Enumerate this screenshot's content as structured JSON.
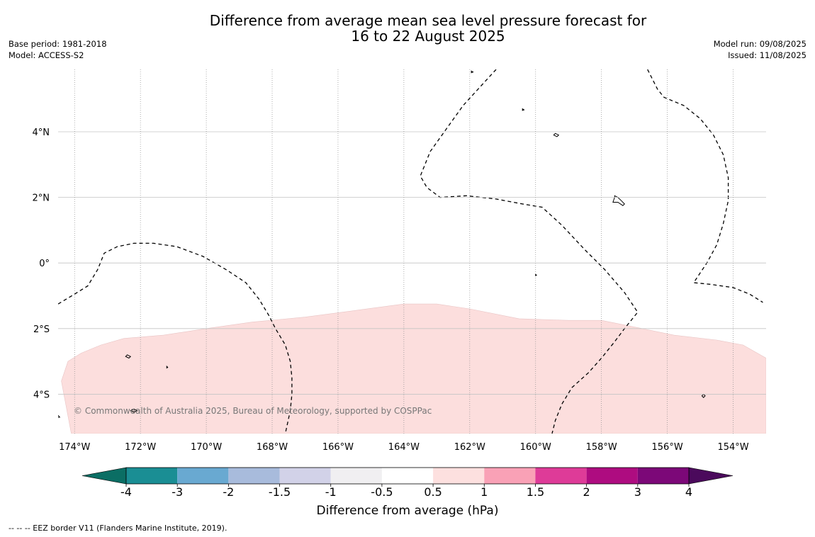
{
  "title_line1": "Difference from average mean sea level pressure forecast for",
  "title_line2": "16 to 22 August 2025",
  "base_period": "Base period: 1981-2018",
  "model": "Model: ACCESS-S2",
  "model_run": "Model run: 09/08/2025",
  "issued": "Issued: 11/08/2025",
  "copyright": "© Commonwealth of Australia 2025, Bureau of Meteorology, supported by COSPPac",
  "footer": "--  --  -- EEZ border V11 (Flanders Marine Institute, 2019).",
  "map": {
    "lon_range": [
      -174.5,
      -153
    ],
    "lat_range": [
      -5.2,
      5.9
    ],
    "lon_ticks": [
      {
        "value": -174,
        "label": "174°W"
      },
      {
        "value": -172,
        "label": "172°W"
      },
      {
        "value": -170,
        "label": "170°W"
      },
      {
        "value": -168,
        "label": "168°W"
      },
      {
        "value": -166,
        "label": "166°W"
      },
      {
        "value": -164,
        "label": "164°W"
      },
      {
        "value": -162,
        "label": "162°W"
      },
      {
        "value": -160,
        "label": "160°W"
      },
      {
        "value": -158,
        "label": "158°W"
      },
      {
        "value": -156,
        "label": "156°W"
      },
      {
        "value": -154,
        "label": "154°W"
      }
    ],
    "lat_ticks": [
      {
        "value": 4,
        "label": "4°N"
      },
      {
        "value": 2,
        "label": "2°N"
      },
      {
        "value": 0,
        "label": "0°"
      },
      {
        "value": -2,
        "label": "2°S"
      },
      {
        "value": -4,
        "label": "4°S"
      }
    ],
    "anomaly_fill_color": "#fcdedd",
    "anomaly_region": [
      [
        -174.1,
        -5.2
      ],
      [
        -174.4,
        -3.6
      ],
      [
        -174.2,
        -3.0
      ],
      [
        -173.8,
        -2.75
      ],
      [
        -173.2,
        -2.5
      ],
      [
        -172.5,
        -2.3
      ],
      [
        -171.3,
        -2.2
      ],
      [
        -170,
        -2.0
      ],
      [
        -168.6,
        -1.8
      ],
      [
        -167,
        -1.65
      ],
      [
        -165.5,
        -1.45
      ],
      [
        -164,
        -1.25
      ],
      [
        -163,
        -1.25
      ],
      [
        -162,
        -1.4
      ],
      [
        -160.5,
        -1.7
      ],
      [
        -159,
        -1.75
      ],
      [
        -158,
        -1.75
      ],
      [
        -157,
        -1.95
      ],
      [
        -155.8,
        -2.2
      ],
      [
        -154.5,
        -2.35
      ],
      [
        -153.7,
        -2.5
      ],
      [
        -153,
        -2.9
      ],
      [
        -153,
        -5.2
      ]
    ],
    "eez_lines": [
      [
        [
          -174.5,
          -1.25
        ],
        [
          -174,
          -0.95
        ],
        [
          -173.6,
          -0.7
        ],
        [
          -173.3,
          -0.2
        ],
        [
          -173.1,
          0.3
        ],
        [
          -172.7,
          0.5
        ],
        [
          -172.2,
          0.6
        ],
        [
          -171.6,
          0.6
        ],
        [
          -170.9,
          0.5
        ],
        [
          -170.1,
          0.2
        ],
        [
          -169.4,
          -0.2
        ],
        [
          -168.8,
          -0.6
        ],
        [
          -168.4,
          -1.1
        ],
        [
          -168.1,
          -1.6
        ],
        [
          -167.9,
          -2.0
        ],
        [
          -167.6,
          -2.5
        ],
        [
          -167.45,
          -3.0
        ],
        [
          -167.4,
          -3.5
        ],
        [
          -167.4,
          -4.0
        ],
        [
          -167.45,
          -4.5
        ],
        [
          -167.6,
          -5.2
        ]
      ],
      [
        [
          -161.2,
          5.9
        ],
        [
          -162.2,
          4.8
        ],
        [
          -163.2,
          3.4
        ],
        [
          -163.5,
          2.65
        ],
        [
          -163.3,
          2.3
        ],
        [
          -162.9,
          2.0
        ],
        [
          -162.1,
          2.05
        ],
        [
          -161.2,
          1.95
        ],
        [
          -160.4,
          1.8
        ],
        [
          -159.8,
          1.7
        ],
        [
          -159.2,
          1.15
        ],
        [
          -158.5,
          0.4
        ],
        [
          -157.9,
          -0.2
        ],
        [
          -157.3,
          -0.9
        ],
        [
          -156.9,
          -1.5
        ],
        [
          -157.3,
          -2.0
        ],
        [
          -157.6,
          -2.4
        ],
        [
          -158,
          -2.9
        ],
        [
          -158.4,
          -3.35
        ],
        [
          -158.9,
          -3.8
        ],
        [
          -159.2,
          -4.3
        ],
        [
          -159.4,
          -4.8
        ],
        [
          -159.5,
          -5.2
        ]
      ],
      [
        [
          -156.6,
          5.9
        ],
        [
          -156.3,
          5.3
        ],
        [
          -156.1,
          5.05
        ],
        [
          -155.5,
          4.8
        ],
        [
          -155,
          4.4
        ],
        [
          -154.6,
          3.9
        ],
        [
          -154.3,
          3.3
        ],
        [
          -154.15,
          2.6
        ],
        [
          -154.15,
          1.9
        ],
        [
          -154.3,
          1.2
        ],
        [
          -154.5,
          0.55
        ],
        [
          -154.8,
          0
        ],
        [
          -155.2,
          -0.6
        ],
        [
          -154.7,
          -0.65
        ],
        [
          -154.0,
          -0.75
        ],
        [
          -153.5,
          -0.95
        ],
        [
          -153.1,
          -1.2
        ]
      ]
    ],
    "islands": [
      [
        [
          -157.6,
          2.05
        ],
        [
          -157.5,
          2.0
        ],
        [
          -157.4,
          1.9
        ],
        [
          -157.3,
          1.8
        ],
        [
          -157.35,
          1.75
        ],
        [
          -157.5,
          1.85
        ],
        [
          -157.65,
          1.85
        ],
        [
          -157.6,
          2.0
        ]
      ],
      [
        [
          -159.4,
          3.95
        ],
        [
          -159.3,
          3.9
        ],
        [
          -159.35,
          3.85
        ],
        [
          -159.45,
          3.9
        ]
      ],
      [
        [
          -172.4,
          -2.8
        ],
        [
          -172.3,
          -2.85
        ],
        [
          -172.35,
          -2.9
        ],
        [
          -172.45,
          -2.85
        ]
      ],
      [
        [
          -172.2,
          -4.45
        ],
        [
          -172.1,
          -4.5
        ],
        [
          -172.2,
          -4.55
        ],
        [
          -172.3,
          -4.5
        ]
      ],
      [
        [
          -174.5,
          -4.65
        ],
        [
          -174.45,
          -4.7
        ],
        [
          -174.55,
          -4.72
        ]
      ],
      [
        [
          -154.9,
          -4.0
        ],
        [
          -154.85,
          -4.05
        ],
        [
          -154.9,
          -4.1
        ],
        [
          -154.95,
          -4.05
        ]
      ],
      [
        [
          -161.95,
          5.85
        ],
        [
          -161.9,
          5.82
        ],
        [
          -161.95,
          5.8
        ]
      ],
      [
        [
          -160.4,
          4.7
        ],
        [
          -160.35,
          4.67
        ],
        [
          -160.4,
          4.65
        ]
      ],
      [
        [
          -160,
          -0.35
        ],
        [
          -159.97,
          -0.37
        ],
        [
          -160,
          -0.39
        ]
      ],
      [
        [
          -171.2,
          -3.15
        ],
        [
          -171.17,
          -3.18
        ],
        [
          -171.2,
          -3.2
        ]
      ]
    ]
  },
  "colorbar": {
    "label": "Difference from average (hPa)",
    "tick_labels": [
      "-4",
      "-3",
      "-2",
      "-1.5",
      "-1",
      "-0.5",
      "0.5",
      "1",
      "1.5",
      "2",
      "3",
      "4"
    ],
    "under_color": "#0b6e64",
    "over_color": "#4b0a5c",
    "colors": [
      "#1a8e94",
      "#69a9d1",
      "#a8bbdc",
      "#d2d2e8",
      "#f0eff1",
      "#ffffff",
      "#fde0df",
      "#f9a1b6",
      "#de3b98",
      "#ae0c80",
      "#7c0878"
    ]
  }
}
